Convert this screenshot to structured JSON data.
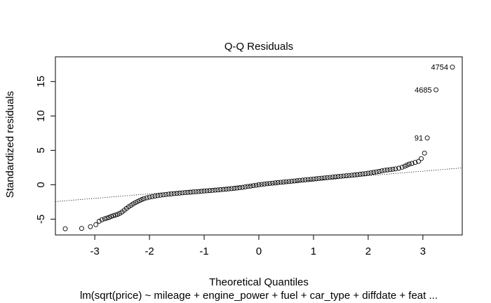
{
  "chart_data": {
    "type": "scatter",
    "title": "Q-Q Residuals",
    "xlabel": "Theoretical Quantiles",
    "ylabel": "Standardized residuals",
    "subtitle": "lm(sqrt(price) ~ mileage + engine_power + fuel + car_type + diffdate + feat ...",
    "xlim": [
      -3.72,
      3.72
    ],
    "ylim": [
      -7.3,
      18.6
    ],
    "x_ticks": [
      -3,
      -2,
      -1,
      0,
      1,
      2,
      3
    ],
    "y_ticks": [
      -5,
      0,
      5,
      10,
      15
    ],
    "grid": false,
    "reference_line": {
      "x1": -3.72,
      "y1": -2.45,
      "x2": 3.72,
      "y2": 2.45,
      "style": "dotted"
    },
    "series": [
      {
        "marker": "open-circle",
        "points": [
          [
            -3.54,
            -6.4
          ],
          [
            -3.24,
            -6.35
          ],
          [
            -3.08,
            -6.1
          ],
          [
            -2.98,
            -5.8
          ],
          [
            -2.92,
            -5.3
          ],
          [
            -2.87,
            -5.1
          ],
          [
            -2.82,
            -4.95
          ],
          [
            -2.78,
            -4.85
          ],
          [
            -2.74,
            -4.75
          ],
          [
            -2.7,
            -4.6
          ],
          [
            -2.66,
            -4.5
          ],
          [
            -2.62,
            -4.4
          ],
          [
            -2.58,
            -4.3
          ],
          [
            -2.54,
            -4.15
          ],
          [
            -2.5,
            -3.95
          ],
          [
            -2.46,
            -3.7
          ],
          [
            -2.42,
            -3.45
          ],
          [
            -2.38,
            -3.2
          ],
          [
            -2.34,
            -3.0
          ],
          [
            -2.3,
            -2.8
          ],
          [
            -2.26,
            -2.6
          ],
          [
            -2.22,
            -2.45
          ],
          [
            -2.18,
            -2.3
          ],
          [
            -2.14,
            -2.15
          ],
          [
            -2.1,
            -2.02
          ],
          [
            -2.05,
            -1.9
          ],
          [
            -2.0,
            -1.8
          ],
          [
            -1.95,
            -1.72
          ],
          [
            -1.9,
            -1.65
          ],
          [
            -1.85,
            -1.58
          ],
          [
            -1.8,
            -1.52
          ],
          [
            -1.75,
            -1.47
          ],
          [
            -1.7,
            -1.42
          ],
          [
            -1.65,
            -1.37
          ],
          [
            -1.6,
            -1.33
          ],
          [
            -1.55,
            -1.29
          ],
          [
            -1.5,
            -1.25
          ],
          [
            -1.45,
            -1.21
          ],
          [
            -1.4,
            -1.18
          ],
          [
            -1.35,
            -1.14
          ],
          [
            -1.3,
            -1.11
          ],
          [
            -1.25,
            -1.08
          ],
          [
            -1.2,
            -1.04
          ],
          [
            -1.15,
            -1.01
          ],
          [
            -1.1,
            -0.98
          ],
          [
            -1.05,
            -0.95
          ],
          [
            -1.0,
            -0.91
          ],
          [
            -0.95,
            -0.88
          ],
          [
            -0.9,
            -0.85
          ],
          [
            -0.85,
            -0.82
          ],
          [
            -0.8,
            -0.78
          ],
          [
            -0.75,
            -0.75
          ],
          [
            -0.7,
            -0.71
          ],
          [
            -0.65,
            -0.68
          ],
          [
            -0.6,
            -0.64
          ],
          [
            -0.55,
            -0.6
          ],
          [
            -0.5,
            -0.56
          ],
          [
            -0.45,
            -0.52
          ],
          [
            -0.4,
            -0.47
          ],
          [
            -0.35,
            -0.42
          ],
          [
            -0.3,
            -0.37
          ],
          [
            -0.25,
            -0.31
          ],
          [
            -0.2,
            -0.25
          ],
          [
            -0.15,
            -0.19
          ],
          [
            -0.1,
            -0.13
          ],
          [
            -0.05,
            -0.07
          ],
          [
            0.0,
            0.0
          ],
          [
            0.05,
            0.05
          ],
          [
            0.1,
            0.1
          ],
          [
            0.15,
            0.15
          ],
          [
            0.2,
            0.19
          ],
          [
            0.25,
            0.23
          ],
          [
            0.3,
            0.27
          ],
          [
            0.35,
            0.31
          ],
          [
            0.4,
            0.35
          ],
          [
            0.45,
            0.39
          ],
          [
            0.5,
            0.43
          ],
          [
            0.55,
            0.47
          ],
          [
            0.6,
            0.51
          ],
          [
            0.65,
            0.55
          ],
          [
            0.7,
            0.59
          ],
          [
            0.75,
            0.63
          ],
          [
            0.8,
            0.67
          ],
          [
            0.85,
            0.71
          ],
          [
            0.9,
            0.75
          ],
          [
            0.95,
            0.79
          ],
          [
            1.0,
            0.83
          ],
          [
            1.05,
            0.87
          ],
          [
            1.1,
            0.91
          ],
          [
            1.15,
            0.95
          ],
          [
            1.2,
            0.99
          ],
          [
            1.25,
            1.03
          ],
          [
            1.3,
            1.07
          ],
          [
            1.35,
            1.11
          ],
          [
            1.4,
            1.15
          ],
          [
            1.45,
            1.19
          ],
          [
            1.5,
            1.23
          ],
          [
            1.55,
            1.27
          ],
          [
            1.6,
            1.31
          ],
          [
            1.65,
            1.35
          ],
          [
            1.7,
            1.39
          ],
          [
            1.75,
            1.43
          ],
          [
            1.8,
            1.47
          ],
          [
            1.85,
            1.52
          ],
          [
            1.9,
            1.57
          ],
          [
            1.95,
            1.62
          ],
          [
            2.0,
            1.68
          ],
          [
            2.05,
            1.74
          ],
          [
            2.1,
            1.8
          ],
          [
            2.15,
            1.87
          ],
          [
            2.2,
            1.94
          ],
          [
            2.25,
            2.02
          ],
          [
            2.3,
            2.1
          ],
          [
            2.35,
            2.15
          ],
          [
            2.4,
            2.2
          ],
          [
            2.45,
            2.25
          ],
          [
            2.5,
            2.3
          ],
          [
            2.56,
            2.4
          ],
          [
            2.62,
            2.55
          ],
          [
            2.67,
            2.7
          ],
          [
            2.71,
            2.85
          ],
          [
            2.75,
            3.0
          ],
          [
            2.8,
            3.1
          ],
          [
            2.86,
            3.25
          ],
          [
            2.92,
            3.4
          ],
          [
            2.97,
            3.8
          ],
          [
            3.03,
            4.6
          ],
          [
            3.08,
            6.8
          ],
          [
            3.24,
            13.8
          ],
          [
            3.54,
            17.1
          ]
        ]
      }
    ],
    "point_labels": [
      {
        "x": 3.54,
        "y": 17.1,
        "text": "4754"
      },
      {
        "x": 3.24,
        "y": 13.8,
        "text": "4685"
      },
      {
        "x": 3.08,
        "y": 6.8,
        "text": "91"
      }
    ]
  }
}
